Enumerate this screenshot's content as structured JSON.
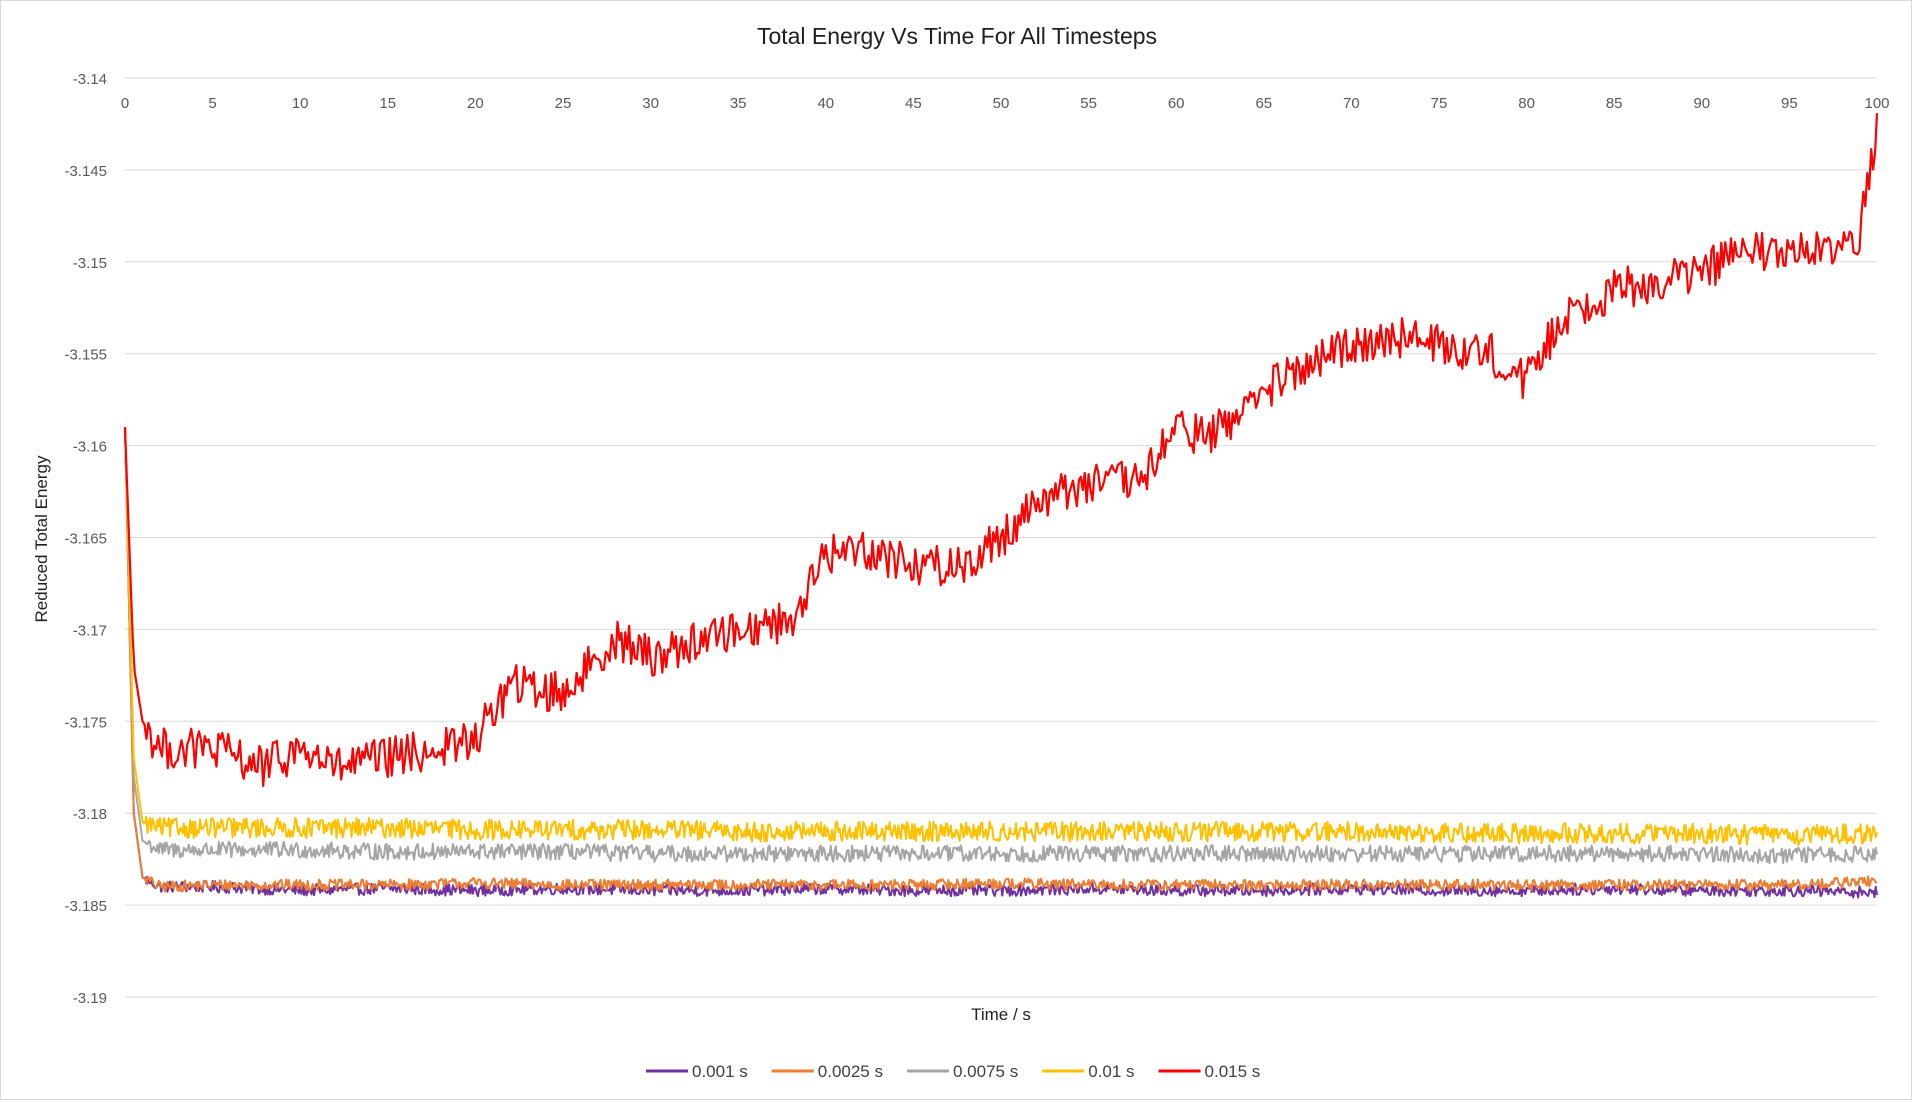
{
  "chart_data": {
    "type": "line",
    "title": "Total Energy Vs Time For All Timesteps",
    "xlabel": "Time / s",
    "ylabel": "Reduced Total Energy",
    "xlim": [
      0,
      100
    ],
    "ylim": [
      -3.19,
      -3.14
    ],
    "x_ticks": [
      "0",
      "5",
      "10",
      "15",
      "20",
      "25",
      "30",
      "35",
      "40",
      "45",
      "50",
      "55",
      "60",
      "65",
      "70",
      "75",
      "80",
      "85",
      "90",
      "95",
      "100"
    ],
    "y_ticks": [
      "-3.14",
      "-3.145",
      "-3.15",
      "-3.155",
      "-3.16",
      "-3.165",
      "-3.17",
      "-3.175",
      "-3.18",
      "-3.185",
      "-3.19"
    ],
    "x_axis_position": "top",
    "grid": "horizontal",
    "legend": "bottom",
    "series": [
      {
        "name": "0.001 s",
        "color": "#7030A0",
        "x": [
          0,
          0.5,
          1,
          2,
          5,
          10,
          15,
          20,
          25,
          30,
          35,
          40,
          45,
          50,
          55,
          60,
          65,
          70,
          75,
          80,
          85,
          90,
          95,
          100
        ],
        "y": [
          -3.159,
          -3.18,
          -3.1835,
          -3.184,
          -3.184,
          -3.1842,
          -3.1841,
          -3.1842,
          -3.1841,
          -3.1842,
          -3.1842,
          -3.1841,
          -3.1842,
          -3.1842,
          -3.1841,
          -3.1842,
          -3.1842,
          -3.1841,
          -3.1842,
          -3.1842,
          -3.1841,
          -3.1842,
          -3.1842,
          -3.1843
        ]
      },
      {
        "name": "0.0025 s",
        "color": "#ED7D31",
        "x": [
          0,
          0.5,
          1,
          2,
          5,
          10,
          15,
          20,
          25,
          30,
          35,
          40,
          45,
          50,
          55,
          60,
          65,
          70,
          75,
          80,
          85,
          90,
          95,
          100
        ],
        "y": [
          -3.159,
          -3.18,
          -3.1835,
          -3.184,
          -3.1839,
          -3.1839,
          -3.1839,
          -3.1838,
          -3.1839,
          -3.1839,
          -3.1839,
          -3.1839,
          -3.1839,
          -3.1838,
          -3.1839,
          -3.1839,
          -3.1839,
          -3.1839,
          -3.1839,
          -3.1839,
          -3.1839,
          -3.1839,
          -3.1839,
          -3.1837
        ]
      },
      {
        "name": "0.0075 s",
        "color": "#A5A5A5",
        "x": [
          0,
          0.5,
          1,
          2,
          5,
          10,
          15,
          20,
          25,
          30,
          35,
          40,
          45,
          50,
          55,
          60,
          65,
          70,
          75,
          80,
          85,
          90,
          95,
          100
        ],
        "y": [
          -3.159,
          -3.178,
          -3.1815,
          -3.182,
          -3.182,
          -3.182,
          -3.1821,
          -3.1821,
          -3.1821,
          -3.1822,
          -3.1822,
          -3.1822,
          -3.1822,
          -3.1822,
          -3.1822,
          -3.1822,
          -3.1822,
          -3.1822,
          -3.1822,
          -3.1822,
          -3.1822,
          -3.1822,
          -3.1823,
          -3.1822
        ]
      },
      {
        "name": "0.01 s",
        "color": "#FFC000",
        "x": [
          0,
          0.5,
          1,
          2,
          5,
          10,
          15,
          20,
          25,
          30,
          35,
          40,
          45,
          50,
          55,
          60,
          65,
          70,
          75,
          80,
          85,
          90,
          95,
          100
        ],
        "y": [
          -3.159,
          -3.177,
          -3.1805,
          -3.1808,
          -3.1808,
          -3.1808,
          -3.1808,
          -3.1809,
          -3.1809,
          -3.1809,
          -3.181,
          -3.181,
          -3.181,
          -3.181,
          -3.181,
          -3.181,
          -3.181,
          -3.181,
          -3.1811,
          -3.1811,
          -3.1811,
          -3.1811,
          -3.1812,
          -3.1811
        ]
      },
      {
        "name": "0.015 s",
        "color": "#FF0000",
        "x": [
          0,
          0.5,
          1,
          2,
          5,
          8,
          10,
          12,
          15,
          18,
          20,
          22,
          25,
          28,
          30,
          33,
          35,
          38,
          40,
          42,
          45,
          48,
          50,
          52,
          55,
          58,
          60,
          62,
          65,
          67,
          70,
          72,
          75,
          78,
          80,
          82,
          85,
          88,
          90,
          92,
          95,
          98,
          99,
          100
        ],
        "y": [
          -3.159,
          -3.172,
          -3.175,
          -3.1765,
          -3.1765,
          -3.1775,
          -3.1765,
          -3.1775,
          -3.177,
          -3.1765,
          -3.176,
          -3.173,
          -3.1735,
          -3.1705,
          -3.1715,
          -3.1705,
          -3.17,
          -3.1695,
          -3.166,
          -3.1655,
          -3.1665,
          -3.1665,
          -3.165,
          -3.163,
          -3.162,
          -3.162,
          -3.159,
          -3.1595,
          -3.157,
          -3.156,
          -3.1545,
          -3.154,
          -3.1545,
          -3.155,
          -3.1565,
          -3.153,
          -3.1515,
          -3.151,
          -3.1505,
          -3.1495,
          -3.1495,
          -3.1495,
          -3.1485,
          -3.143
        ]
      }
    ]
  }
}
